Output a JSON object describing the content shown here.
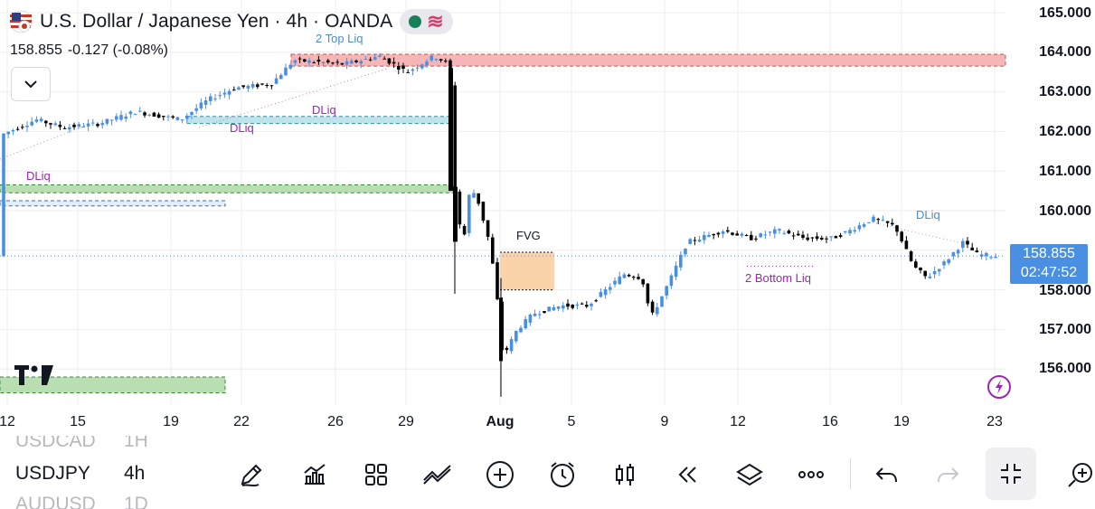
{
  "header": {
    "title": "U.S. Dollar / Japanese Yen · 4h · OANDA",
    "price": "158.855",
    "change": "-0.127 (-0.08%)"
  },
  "chart_data": {
    "type": "candlestick",
    "y_axis_labels": [
      "165.000",
      "164.000",
      "163.000",
      "162.000",
      "161.000",
      "160.000",
      "158.000",
      "157.000",
      "156.000"
    ],
    "ylim": [
      155.5,
      165.2
    ],
    "x_axis_labels": [
      "12",
      "15",
      "19",
      "22",
      "26",
      "29",
      "Aug",
      "5",
      "9",
      "12",
      "16",
      "19",
      "23"
    ],
    "current_price": "158.855",
    "countdown": "02:47:52",
    "annotations": {
      "top_liq": "2 Top Liq",
      "dliq_1": "DLiq",
      "dliq_2": "DLiq",
      "dliq_3": "DLiq",
      "dliq_4": "DLiq",
      "fvg": "FVG",
      "bottom_liq": "2 Bottom Liq"
    },
    "colors": {
      "up": "#4a90e2",
      "down": "#000000",
      "top_zone": "#f4b6b6",
      "green_zone": "#b9deb1",
      "blue_zone": "#bfe3ea",
      "fvg": "#fcd3a9"
    }
  },
  "watchlist": [
    {
      "symbol": "USDCAD",
      "tf": "1H",
      "state": "faded"
    },
    {
      "symbol": "USDJPY",
      "tf": "4h",
      "state": "active"
    },
    {
      "symbol": "AUDUSD",
      "tf": "1D",
      "state": "faded"
    }
  ],
  "toolbar": {
    "icons": [
      "pencil-icon",
      "indicators-icon",
      "layouts-icon",
      "drawing-tools-icon",
      "add-icon",
      "alert-icon",
      "candle-type-icon",
      "replay-icon",
      "layers-icon",
      "more-icon",
      "undo-icon",
      "redo-icon",
      "fullscreen-exit-icon",
      "zoom-icon"
    ]
  }
}
